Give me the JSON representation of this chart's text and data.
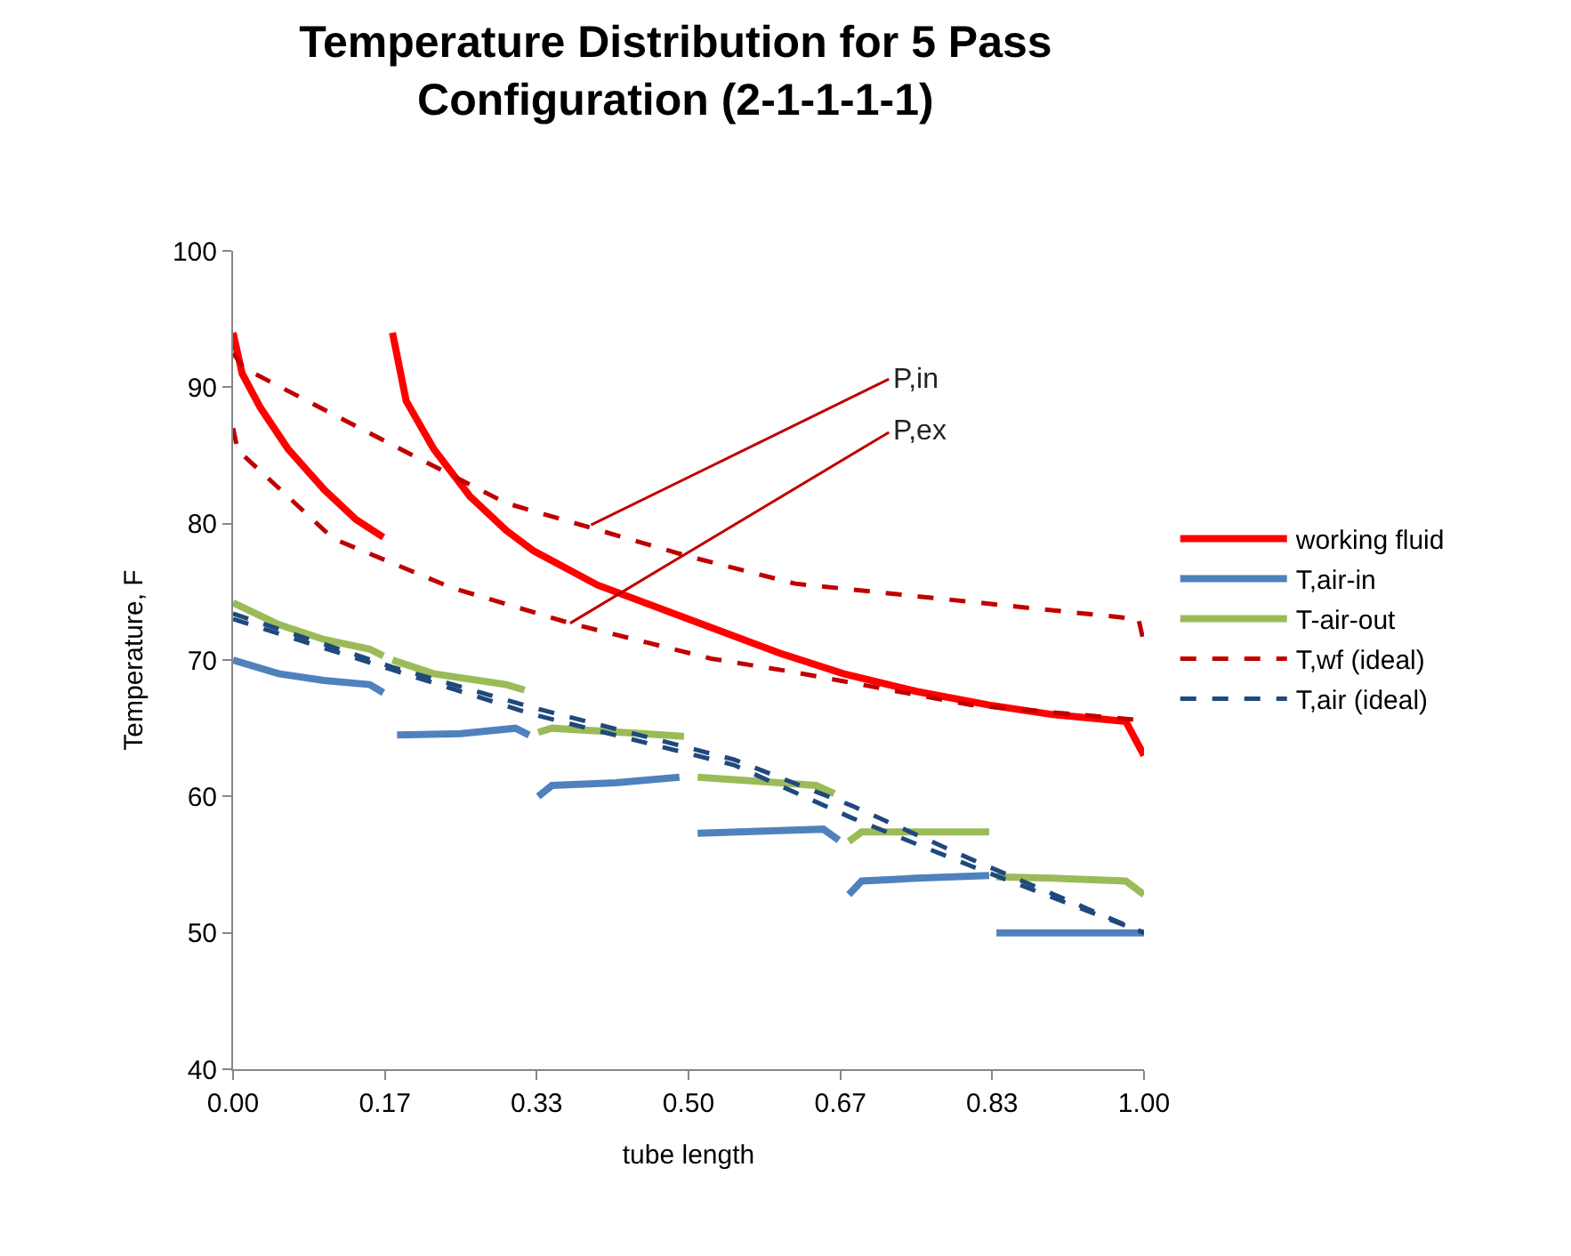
{
  "chart_data": {
    "type": "line",
    "title": "Temperature Distribution for 5 Pass Configuration (2-1-1-1-1)",
    "xlabel": "tube length",
    "ylabel": "Temperature, F",
    "xlim": [
      0,
      1
    ],
    "ylim": [
      40,
      100
    ],
    "xticks": [
      {
        "value": 0,
        "label": "0.00"
      },
      {
        "value": 0.1667,
        "label": "0.17"
      },
      {
        "value": 0.3333,
        "label": "0.33"
      },
      {
        "value": 0.5,
        "label": "0.50"
      },
      {
        "value": 0.6667,
        "label": "0.67"
      },
      {
        "value": 0.8333,
        "label": "0.83"
      },
      {
        "value": 1,
        "label": "1.00"
      }
    ],
    "yticks": [
      40,
      50,
      60,
      70,
      80,
      90,
      100
    ],
    "legend": "right",
    "marker": "none",
    "series": [
      {
        "name": "working fluid",
        "color": "#ff0000",
        "line_style": "solid",
        "x": [
          0,
          0.01,
          0.03,
          0.06,
          0.1,
          0.135,
          0.165,
          0.17,
          0.175,
          0.19,
          0.22,
          0.26,
          0.3,
          0.33,
          0.4,
          0.5,
          0.6,
          0.67,
          0.75,
          0.83,
          0.9,
          0.98,
          1.0
        ],
        "values": [
          94,
          91,
          88.5,
          85.5,
          82.5,
          80.3,
          79,
          null,
          94,
          89,
          85.5,
          82,
          79.5,
          78,
          75.5,
          73,
          70.5,
          69,
          67.7,
          66.7,
          66,
          65.5,
          63
        ]
      },
      {
        "name": "T,air-in",
        "color": "#4f81bd",
        "line_style": "solid",
        "x": [
          0,
          0.05,
          0.1,
          0.15,
          0.165,
          0.17,
          0.18,
          0.25,
          0.31,
          0.325,
          0.33,
          0.335,
          0.35,
          0.42,
          0.49,
          0.5,
          0.51,
          0.6,
          0.648,
          0.665,
          0.67,
          0.676,
          0.69,
          0.75,
          0.83,
          0.835,
          0.838,
          1.0
        ],
        "values": [
          70,
          69,
          68.5,
          68.2,
          67.6,
          null,
          64.5,
          64.6,
          65,
          64.5,
          null,
          60,
          60.8,
          61,
          61.4,
          null,
          57.3,
          57.5,
          57.6,
          56.8,
          null,
          52.8,
          53.8,
          54,
          54.2,
          null,
          50,
          50
        ]
      },
      {
        "name": "T-air-out",
        "color": "#9bbb59",
        "line_style": "solid",
        "x": [
          0,
          0.05,
          0.1,
          0.15,
          0.165,
          0.17,
          0.175,
          0.22,
          0.3,
          0.32,
          0.33,
          0.335,
          0.35,
          0.45,
          0.495,
          0.5,
          0.51,
          0.6,
          0.64,
          0.66,
          0.67,
          0.676,
          0.69,
          0.75,
          0.83,
          0.835,
          0.838,
          0.9,
          0.98,
          1.0
        ],
        "values": [
          74.2,
          72.6,
          71.5,
          70.8,
          70.3,
          null,
          70,
          69,
          68.2,
          67.8,
          null,
          64.7,
          65,
          64.6,
          64.4,
          null,
          61.4,
          61,
          60.8,
          60.2,
          null,
          56.7,
          57.4,
          57.4,
          57.4,
          null,
          54.1,
          54,
          53.8,
          52.8
        ]
      },
      {
        "name": "T,wf (ideal)",
        "color": "#c00000",
        "line_style": "dashed",
        "x": [
          0,
          0.012,
          0.174,
          0.3,
          0.5,
          0.617,
          0.877,
          0.994,
          1.0,
          null,
          0,
          0.005,
          0.11,
          0.24,
          0.37,
          0.525,
          0.617,
          0.81,
          0.994,
          1.0
        ],
        "values": [
          92.5,
          91.4,
          85.8,
          81.5,
          77.6,
          75.6,
          73.8,
          73,
          71.2,
          null,
          87,
          85.4,
          78.9,
          75.3,
          72.7,
          70.1,
          69.1,
          66.7,
          65.6,
          65.2
        ]
      },
      {
        "name": "T,air (ideal)",
        "color": "#1f497d",
        "line_style": "dashed",
        "x": [
          0,
          0.174,
          0.33,
          0.55,
          0.68,
          0.81,
          1.0,
          null,
          0,
          0.174,
          0.33,
          0.55,
          0.68,
          0.81,
          1.0
        ],
        "values": [
          73.4,
          69.5,
          66.5,
          62.7,
          59.3,
          55.4,
          50,
          null,
          73,
          69.3,
          66,
          62.3,
          58.4,
          54.9,
          50
        ]
      }
    ],
    "annotations": [
      {
        "text": "P,in",
        "x": 0.393,
        "y": 79.9
      },
      {
        "text": "P,ex",
        "x": 0.37,
        "y": 72.7
      }
    ]
  }
}
